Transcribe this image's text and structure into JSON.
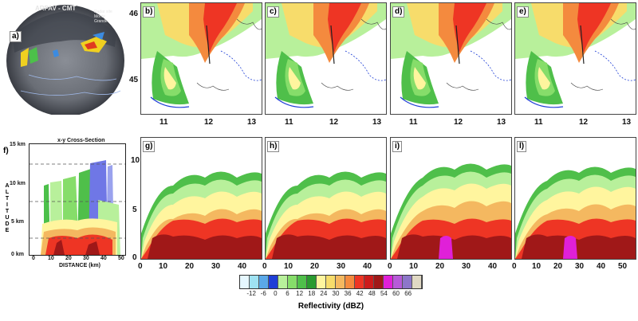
{
  "radar": {
    "title": "ARPAV - CMT",
    "note_lines": [
      "Radar site",
      "Monte",
      "Grande"
    ],
    "label": "a)"
  },
  "map_panels": [
    {
      "label": "b)"
    },
    {
      "label": "c)"
    },
    {
      "label": "d)"
    },
    {
      "label": "e)"
    }
  ],
  "map_axes": {
    "lat_ticks": [
      "46",
      "45"
    ],
    "lon_ticks": [
      "11",
      "12",
      "13"
    ]
  },
  "cross_section": {
    "label": "f)",
    "title": "x-y Cross-Section",
    "y_ticks": [
      "15 km",
      "10 km",
      "5 km",
      "0 km"
    ],
    "y_label_letters": [
      "A",
      "L",
      "T",
      "I",
      "T",
      "U",
      "D",
      "E"
    ],
    "x_ticks": [
      "0",
      "10",
      "20",
      "30",
      "40",
      "50"
    ],
    "x_label": "DISTANCE (km)"
  },
  "vertical_panels": [
    {
      "label": "g)",
      "x_ticks": [
        "0",
        "10",
        "20",
        "30",
        "40"
      ]
    },
    {
      "label": "h)",
      "x_ticks": [
        "0",
        "10",
        "20",
        "30",
        "40"
      ]
    },
    {
      "label": "i)",
      "x_ticks": [
        "0",
        "10",
        "20",
        "30",
        "40"
      ]
    },
    {
      "label": "l)",
      "x_ticks": [
        "0",
        "10",
        "20",
        "30",
        "40",
        "50"
      ]
    }
  ],
  "vertical_axis": {
    "y_ticks": [
      "10",
      "5",
      "0"
    ]
  },
  "colorbar": {
    "title": "Reflectivity (dBZ)",
    "labels": [
      "-12",
      "-6",
      "0",
      "6",
      "12",
      "18",
      "24",
      "30",
      "36",
      "42",
      "48",
      "54",
      "60",
      "66"
    ],
    "colors": [
      "#e6f8ff",
      "#9fe2f2",
      "#5aa8e8",
      "#1f3fd6",
      "#b8f09b",
      "#86dd6a",
      "#4fbf4a",
      "#2a9a2f",
      "#fff59e",
      "#f7dc6b",
      "#f4b860",
      "#f48a3e",
      "#ee3524",
      "#cc1b1b",
      "#a01818",
      "#e020d8",
      "#b75ad8",
      "#8d76c9",
      "#e0d8c4"
    ]
  }
}
